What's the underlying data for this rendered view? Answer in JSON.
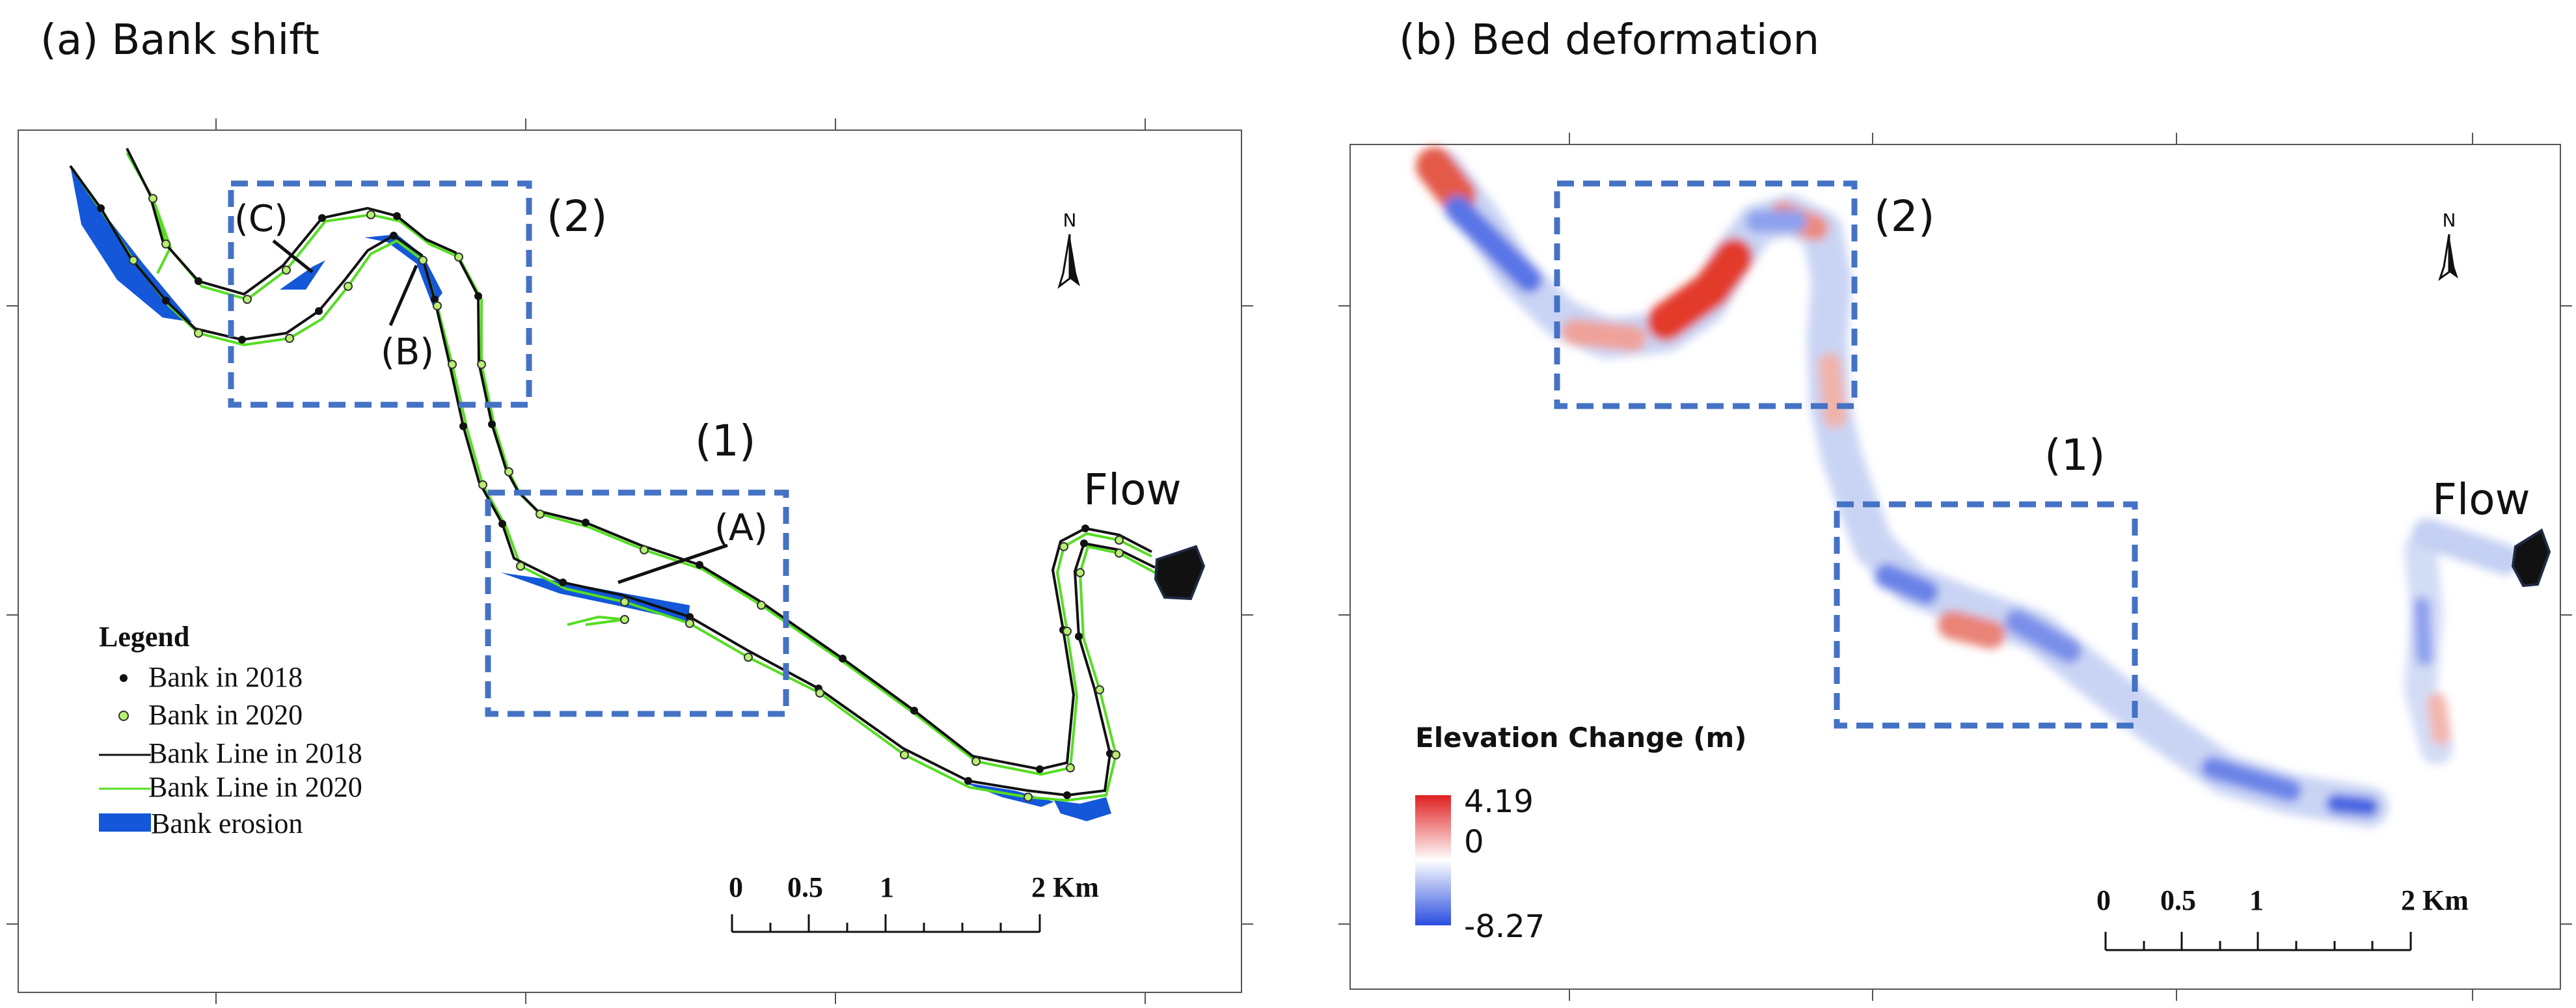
{
  "panel_a": {
    "title": "(a) Bank shift",
    "box_labels": [
      "(1)",
      "(2)"
    ],
    "point_labels": [
      "(A)",
      "(B)",
      "(C)"
    ],
    "flow_label": "Flow",
    "north_label": "N",
    "legend": {
      "title": "Legend",
      "items": [
        "Bank in 2018",
        "Bank in 2020",
        "Bank Line in 2018",
        "Bank Line in 2020",
        "Bank erosion"
      ]
    },
    "scale_labels": [
      "0",
      "0.5",
      "1",
      "2 Km"
    ]
  },
  "panel_b": {
    "title": "(b) Bed deformation",
    "box_labels": [
      "(1)",
      "(2)"
    ],
    "flow_label": "Flow",
    "north_label": "N",
    "colorbar": {
      "title": "Elevation Change (m)",
      "max": "4.19",
      "mid": "0",
      "min": "-8.27"
    },
    "scale_labels": [
      "0",
      "0.5",
      "1",
      "2 Km"
    ]
  },
  "colors": {
    "bank_2018": "#000000",
    "bank_2020": "#55dd22",
    "erosion": "#1457d8",
    "box": "#4472c4",
    "increase": "#e02020",
    "decrease": "#2a4de0"
  }
}
